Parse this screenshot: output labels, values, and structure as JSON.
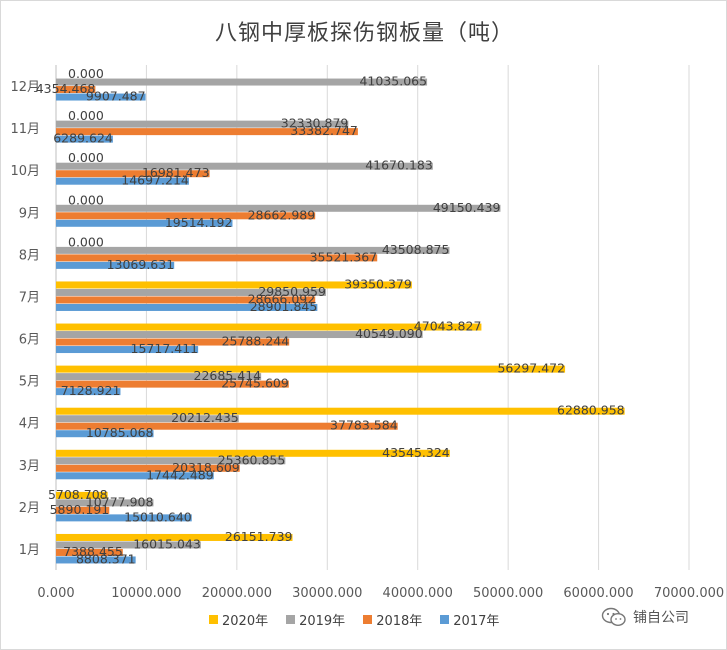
{
  "chart_data": {
    "type": "bar",
    "orientation": "horizontal",
    "title": "八钢中厚板探伤钢板量（吨）",
    "categories": [
      "1月",
      "2月",
      "3月",
      "4月",
      "5月",
      "6月",
      "7月",
      "8月",
      "9月",
      "10月",
      "11月",
      "12月"
    ],
    "series": [
      {
        "name": "2020年",
        "color": "#ffc000",
        "values": [
          26151.739,
          5708.708,
          43545.324,
          62880.958,
          56297.472,
          47043.827,
          39350.379,
          null,
          null,
          null,
          null,
          null
        ],
        "labels": [
          "26151.739",
          "5708.708",
          "43545.324",
          "62880.958",
          "56297.472",
          "47043.827",
          "39350.379",
          "",
          "",
          "",
          "",
          ""
        ]
      },
      {
        "name": "2019年",
        "color": "#a5a5a5",
        "values": [
          16015.043,
          10777.908,
          25360.855,
          20212.435,
          22685.414,
          40549.09,
          29850.959,
          43508.875,
          49150.439,
          41670.183,
          32330.879,
          41035.065
        ],
        "labels": [
          "16015.043",
          "10777.908",
          "25360.855",
          "20212.435",
          "22685.414",
          "40549.090",
          "29850.959",
          "43508.875",
          "49150.439",
          "41670.183",
          "32330.879",
          "41035.065"
        ]
      },
      {
        "name": "2018年",
        "color": "#ed7d31",
        "values": [
          7388.455,
          5890.191,
          20318.609,
          37783.584,
          25745.609,
          25788.244,
          28666.092,
          35521.367,
          28662.989,
          16981.473,
          33382.747,
          4354.468
        ],
        "labels": [
          "7388.455",
          "5890.191",
          "20318.609",
          "37783.584",
          "25745.609",
          "25788.244",
          "28666.092",
          "35521.367",
          "28662.989",
          "16981.473",
          "33382.747",
          "4354.468"
        ]
      },
      {
        "name": "2017年",
        "color": "#5b9bd5",
        "values": [
          8808.371,
          15010.64,
          17442.489,
          10785.068,
          7128.921,
          15717.411,
          28901.845,
          13069.631,
          19514.192,
          14697.214,
          6289.624,
          9907.487
        ],
        "labels": [
          "8808.371",
          "15010.640",
          "17442.489",
          "10785.068",
          "7128.921",
          "15717.411",
          "28901.845",
          "13069.631",
          "19514.192",
          "14697.214",
          "6289.624",
          "9907.487"
        ]
      }
    ],
    "zero_labels": {
      "2020年": "0.000"
    },
    "xlim": [
      0,
      70000
    ],
    "xticks": [
      "0.000",
      "10000.000",
      "20000.000",
      "30000.000",
      "40000.000",
      "50000.000",
      "60000.000",
      "70000.000"
    ],
    "grid": true,
    "legend_position": "bottom"
  },
  "watermark": {
    "text": "铺自公司",
    "icon": "wechat-icon"
  }
}
